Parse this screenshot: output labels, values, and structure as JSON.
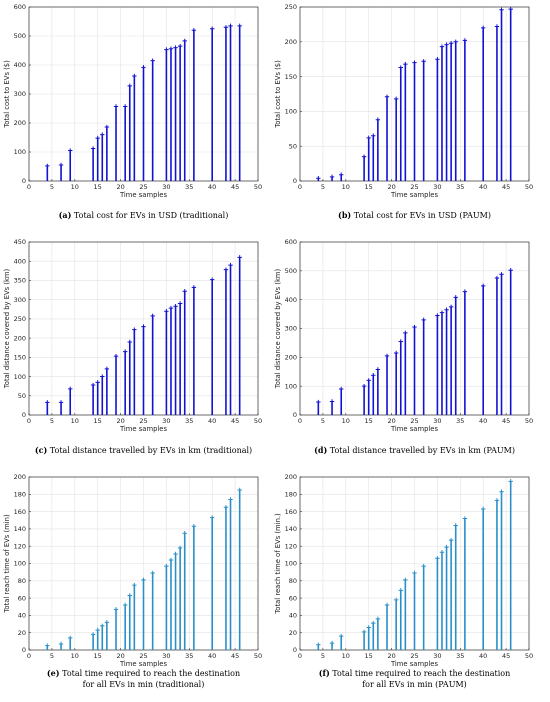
{
  "colors": {
    "dark_blue": "#1212d4",
    "light_blue": "#2a8fc9",
    "grid": "#e2e2e2",
    "axis": "#333333"
  },
  "chart_data": [
    {
      "type": "stem",
      "color": "#1212d4",
      "xlabel": "Time samples",
      "ylabel": "Total cost to EVs ($)",
      "xlim": [
        0,
        50
      ],
      "ylim": [
        0,
        600
      ],
      "xticks": [
        0,
        5,
        10,
        15,
        20,
        25,
        30,
        35,
        40,
        45,
        50
      ],
      "yticks": [
        0,
        100,
        200,
        300,
        400,
        500,
        600
      ],
      "x": [
        4,
        7,
        9,
        14,
        15,
        16,
        17,
        19,
        21,
        22,
        23,
        25,
        27,
        30,
        31,
        32,
        33,
        34,
        36,
        40,
        43,
        44,
        46
      ],
      "y": [
        52,
        55,
        105,
        112,
        148,
        160,
        186,
        257,
        257,
        328,
        362,
        392,
        415,
        453,
        456,
        460,
        465,
        483,
        520,
        525,
        530,
        535,
        535
      ],
      "caption": {
        "letter": "(a)",
        "text": "Total cost for EVs in USD (traditional)"
      }
    },
    {
      "type": "stem",
      "color": "#1212d4",
      "xlabel": "Time samples",
      "ylabel": "Total cost to EVs ($)",
      "xlim": [
        0,
        50
      ],
      "ylim": [
        0,
        250
      ],
      "xticks": [
        0,
        5,
        10,
        15,
        20,
        25,
        30,
        35,
        40,
        45,
        50
      ],
      "yticks": [
        0,
        50,
        100,
        150,
        200,
        250
      ],
      "x": [
        4,
        7,
        9,
        14,
        15,
        16,
        17,
        19,
        21,
        22,
        23,
        25,
        27,
        30,
        31,
        32,
        33,
        34,
        36,
        40,
        43,
        44,
        46
      ],
      "y": [
        4,
        6,
        9,
        35,
        62,
        65,
        88,
        121,
        118,
        163,
        168,
        170,
        172,
        175,
        193,
        196,
        198,
        200,
        202,
        220,
        222,
        246,
        247
      ],
      "caption": {
        "letter": "(b)",
        "text": "Total cost for EVs in USD (PAUM)"
      }
    },
    {
      "type": "stem",
      "color": "#1212d4",
      "xlabel": "Time samples",
      "ylabel": "Total distance covered by EVs (km)",
      "xlim": [
        0,
        50
      ],
      "ylim": [
        0,
        450
      ],
      "xticks": [
        0,
        5,
        10,
        15,
        20,
        25,
        30,
        35,
        40,
        45,
        50
      ],
      "yticks": [
        0,
        50,
        100,
        150,
        200,
        250,
        300,
        350,
        400,
        450
      ],
      "x": [
        4,
        7,
        9,
        14,
        15,
        16,
        17,
        19,
        21,
        22,
        23,
        25,
        27,
        30,
        31,
        32,
        33,
        34,
        36,
        40,
        43,
        44,
        46
      ],
      "y": [
        33,
        33,
        68,
        78,
        85,
        100,
        120,
        153,
        165,
        190,
        222,
        230,
        258,
        270,
        278,
        283,
        290,
        322,
        332,
        352,
        378,
        390,
        410
      ],
      "caption": {
        "letter": "(c)",
        "text": "Total distance travelled by EVs in km (traditional)"
      }
    },
    {
      "type": "stem",
      "color": "#1212d4",
      "xlabel": "Time samples",
      "ylabel": "Total distance covered by EVs (km)",
      "xlim": [
        0,
        50
      ],
      "ylim": [
        0,
        600
      ],
      "xticks": [
        0,
        5,
        10,
        15,
        20,
        25,
        30,
        35,
        40,
        45,
        50
      ],
      "yticks": [
        0,
        100,
        200,
        300,
        400,
        500,
        600
      ],
      "x": [
        4,
        7,
        9,
        14,
        15,
        16,
        17,
        19,
        21,
        22,
        23,
        25,
        27,
        30,
        31,
        32,
        33,
        34,
        36,
        40,
        43,
        44,
        46
      ],
      "y": [
        45,
        47,
        90,
        100,
        120,
        138,
        158,
        205,
        215,
        255,
        285,
        305,
        330,
        345,
        355,
        365,
        375,
        408,
        428,
        448,
        475,
        488,
        502
      ],
      "caption": {
        "letter": "(d)",
        "text": "Total distance travelled by EVs in km (PAUM)"
      }
    },
    {
      "type": "stem",
      "color": "#2a8fc9",
      "xlabel": "Time samples",
      "ylabel": "Total reach time of EVs (min)",
      "xlim": [
        0,
        50
      ],
      "ylim": [
        0,
        200
      ],
      "xticks": [
        0,
        5,
        10,
        15,
        20,
        25,
        30,
        35,
        40,
        45,
        50
      ],
      "yticks": [
        0,
        20,
        40,
        60,
        80,
        100,
        120,
        140,
        160,
        180,
        200
      ],
      "x": [
        4,
        7,
        9,
        14,
        15,
        16,
        17,
        19,
        21,
        22,
        23,
        25,
        27,
        30,
        31,
        32,
        33,
        34,
        36,
        40,
        43,
        44,
        46
      ],
      "y": [
        5,
        7,
        14,
        18,
        23,
        28,
        32,
        47,
        52,
        63,
        75,
        81,
        89,
        97,
        104,
        111,
        118,
        135,
        143,
        153,
        165,
        174,
        185
      ],
      "caption": {
        "letter": "(e)",
        "text": "Total time required to reach the destination",
        "text2": "for all EVs in min (traditional)"
      }
    },
    {
      "type": "stem",
      "color": "#2a8fc9",
      "xlabel": "Time samples",
      "ylabel": "Total reach time of EVs (min.)",
      "xlim": [
        0,
        50
      ],
      "ylim": [
        0,
        200
      ],
      "xticks": [
        0,
        5,
        10,
        15,
        20,
        25,
        30,
        35,
        40,
        45,
        50
      ],
      "yticks": [
        0,
        20,
        40,
        60,
        80,
        100,
        120,
        140,
        160,
        180,
        200
      ],
      "x": [
        4,
        7,
        9,
        14,
        15,
        16,
        17,
        19,
        21,
        22,
        23,
        25,
        27,
        30,
        31,
        32,
        33,
        34,
        36,
        40,
        43,
        44,
        46
      ],
      "y": [
        6,
        8,
        16,
        21,
        26,
        31,
        36,
        52,
        58,
        69,
        81,
        89,
        97,
        106,
        113,
        119,
        127,
        144,
        152,
        163,
        173,
        183,
        195
      ],
      "caption": {
        "letter": "(f)",
        "text": "Total time required to reach the destination",
        "text2": "for all EVs in min (PAUM)"
      }
    }
  ]
}
